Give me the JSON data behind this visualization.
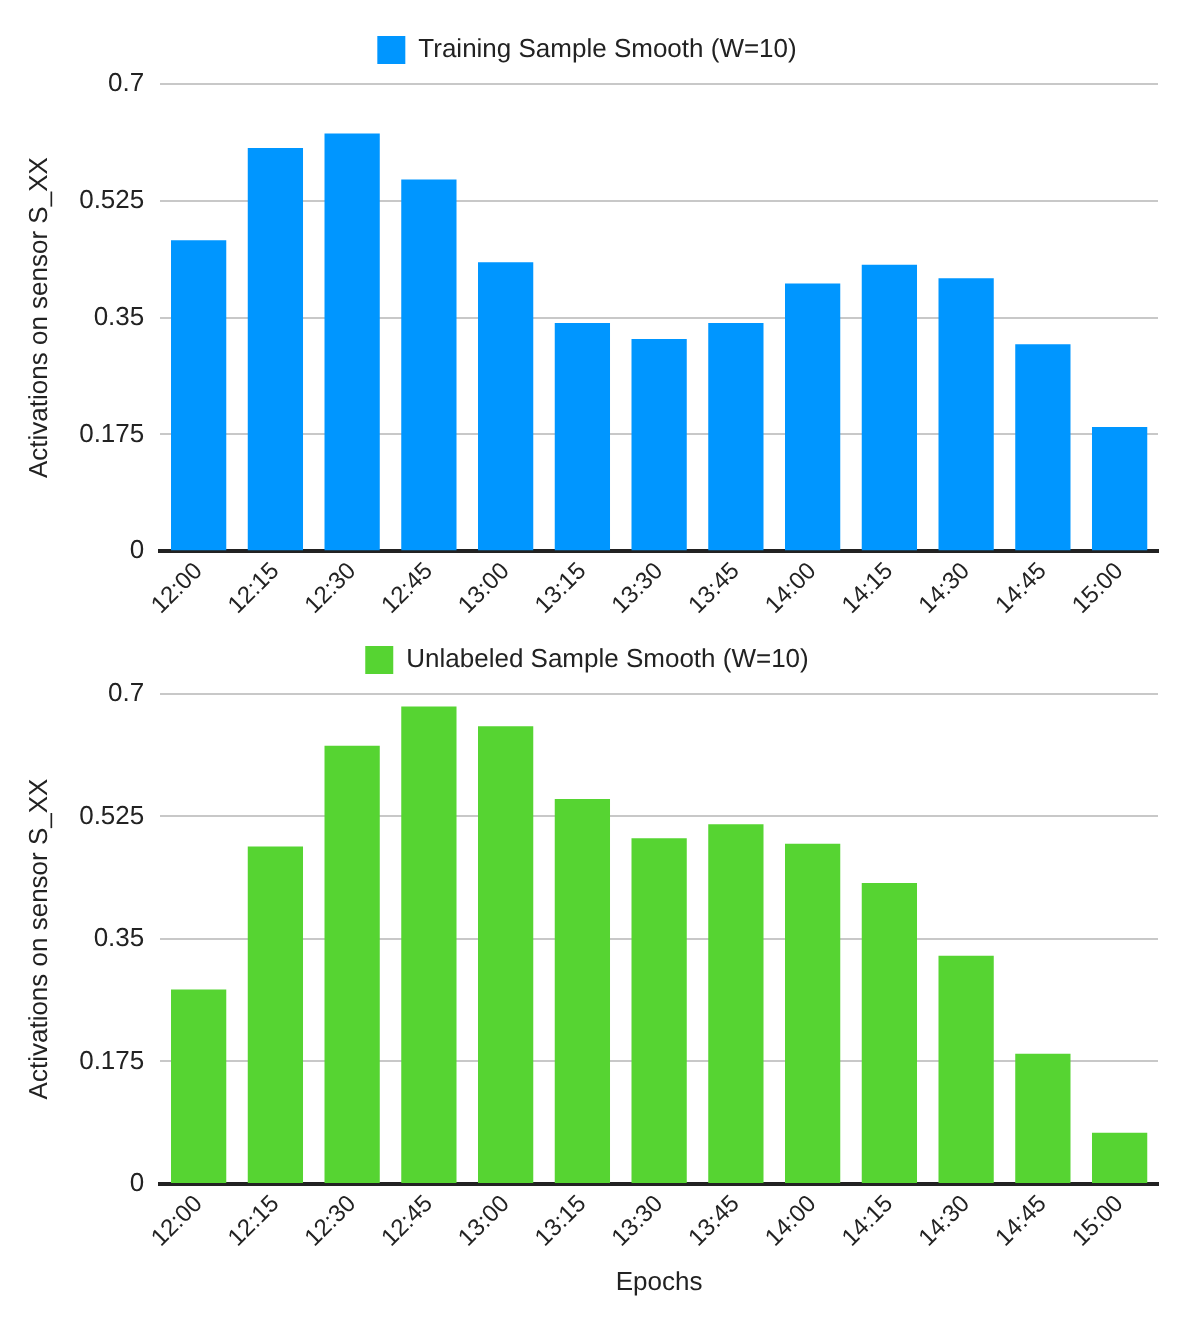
{
  "chart_data": [
    {
      "type": "bar",
      "ylabel": "Activations on sensor S_XX",
      "categories": [
        "12:00",
        "12:15",
        "12:30",
        "12:45",
        "13:00",
        "13:15",
        "13:30",
        "13:45",
        "14:00",
        "14:15",
        "14:30",
        "14:45",
        "15:00"
      ],
      "series": [
        {
          "name": "Training Sample Smooth (W=10)",
          "color": "#0096ff",
          "values": [
            0.466,
            0.604,
            0.626,
            0.557,
            0.433,
            0.342,
            0.318,
            0.342,
            0.401,
            0.429,
            0.409,
            0.31,
            0.186
          ]
        }
      ],
      "ylim": [
        0,
        0.7
      ],
      "yticks": [
        0,
        0.175,
        0.35,
        0.525,
        0.7
      ],
      "grid": "y",
      "legend": "top"
    },
    {
      "type": "bar",
      "xlabel": "Epochs",
      "ylabel": "Activations on sensor S_XX",
      "categories": [
        "12:00",
        "12:15",
        "12:30",
        "12:45",
        "13:00",
        "13:15",
        "13:30",
        "13:45",
        "14:00",
        "14:15",
        "14:30",
        "14:45",
        "15:00"
      ],
      "series": [
        {
          "name": "Unlabeled Sample Smooth (W=10)",
          "color": "#56d432",
          "values": [
            0.278,
            0.482,
            0.626,
            0.682,
            0.654,
            0.55,
            0.494,
            0.514,
            0.486,
            0.43,
            0.326,
            0.186,
            0.073
          ]
        }
      ],
      "ylim": [
        0,
        0.7
      ],
      "yticks": [
        0,
        0.175,
        0.35,
        0.525,
        0.7
      ],
      "grid": "y",
      "legend": "top"
    }
  ]
}
